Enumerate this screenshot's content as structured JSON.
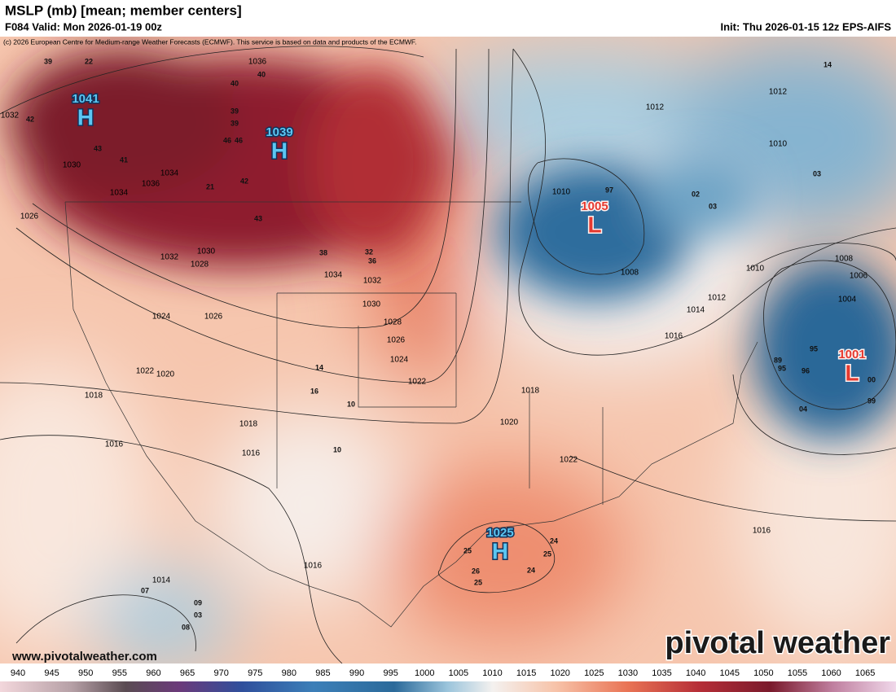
{
  "header": {
    "title": "MSLP (mb) [mean; member centers]",
    "valid": "F084 Valid: Mon 2026-01-19 00z",
    "init": "Init: Thu 2026-01-15 12z EPS-AIFS",
    "copyright": "(c) 2026 European Centre for Medium-range Weather Forecasts (ECMWF). This service is based on data and products of the ECMWF."
  },
  "centers": [
    {
      "letter": "H",
      "value": "1041"
    },
    {
      "letter": "H",
      "value": "1039"
    },
    {
      "letter": "L",
      "value": "1005"
    },
    {
      "letter": "L",
      "value": "1001"
    },
    {
      "letter": "H",
      "value": "1025"
    }
  ],
  "isobar_labels": [
    "1036",
    "1034",
    "1034",
    "1032",
    "1032",
    "1030",
    "1030",
    "1028",
    "1028",
    "1026",
    "1026",
    "1026",
    "1024",
    "1024",
    "1022",
    "1022",
    "1020",
    "1020",
    "1018",
    "1018",
    "1018",
    "1016",
    "1016",
    "1016",
    "1016",
    "1016",
    "1014",
    "1014",
    "1012",
    "1012",
    "1012",
    "1010",
    "1010",
    "1010",
    "1008",
    "1008",
    "1006",
    "1004",
    "1032",
    "1030",
    "1036",
    "1034",
    "1022"
  ],
  "member_values": [
    "40",
    "40",
    "39",
    "39",
    "46",
    "46",
    "42",
    "21",
    "43",
    "38",
    "32",
    "36",
    "39",
    "22",
    "42",
    "43",
    "41",
    "97",
    "03",
    "02",
    "03",
    "14",
    "07",
    "09",
    "03",
    "08",
    "95",
    "96",
    "99",
    "00",
    "04",
    "89",
    "95",
    "25",
    "26",
    "25",
    "24",
    "25",
    "24",
    "14",
    "10",
    "10",
    "16"
  ],
  "footer": {
    "website": "www.pivotalweather.com",
    "watermark": "pivotal weather"
  },
  "colorbar": {
    "ticks": [
      940,
      945,
      950,
      955,
      960,
      965,
      970,
      975,
      980,
      985,
      990,
      995,
      1000,
      1005,
      1010,
      1015,
      1020,
      1025,
      1030,
      1035,
      1040,
      1045,
      1050,
      1055,
      1060,
      1065
    ]
  }
}
